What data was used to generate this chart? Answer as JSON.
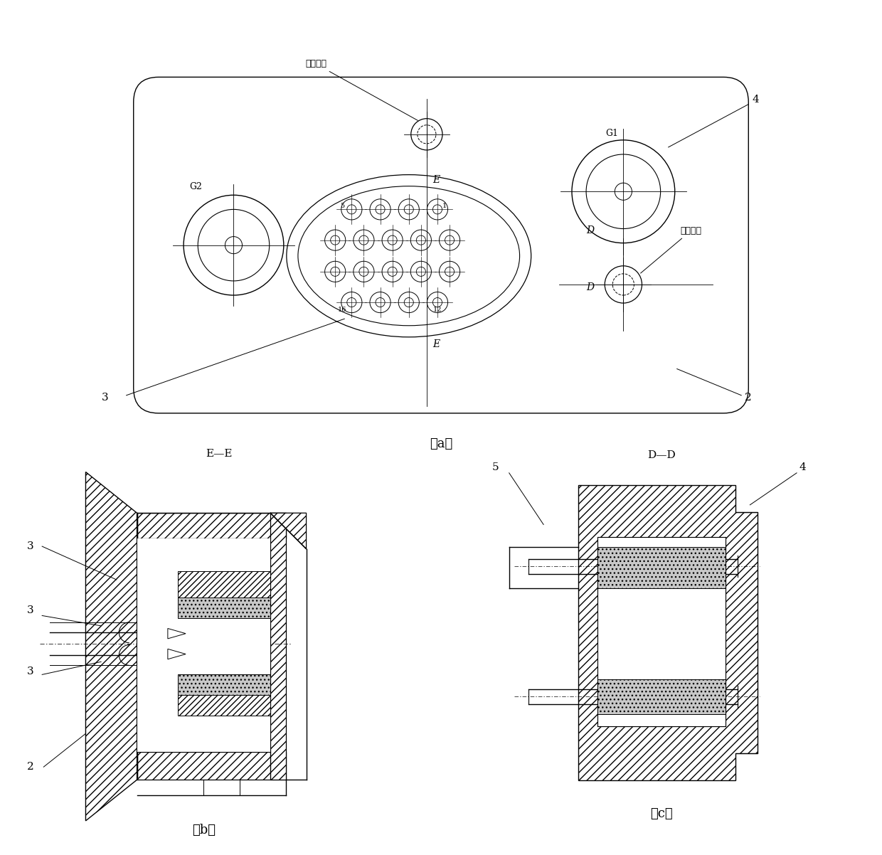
{
  "bg_color": "#ffffff",
  "panel_a_label": "（a）",
  "panel_b_label": "（b）",
  "panel_c_label": "（c）",
  "section_ee_label": "E—E",
  "section_dd_label": "D—D",
  "label_luowen": "螺纹沉孔",
  "label_2": "2",
  "label_3": "3",
  "label_4": "4",
  "label_5": "5",
  "label_G1": "G1",
  "label_G2": "G2",
  "label_D": "D",
  "label_E": "E",
  "label_16": "16",
  "label_12": "12",
  "label_1": "1"
}
